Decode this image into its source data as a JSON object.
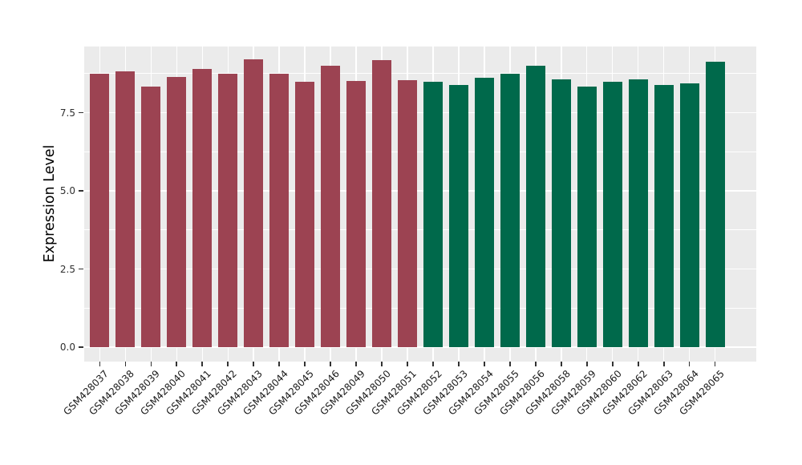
{
  "figure": {
    "background_color": "#FFFFFF"
  },
  "chart_data": {
    "type": "bar",
    "title": "",
    "xlabel": "",
    "ylabel": "Expression Level",
    "ylim": [
      0,
      9.6
    ],
    "ytick_values": [
      0,
      2.5,
      5,
      7.5
    ],
    "ytick_labels": [
      "0.0",
      "2.5",
      "5.0",
      "7.5"
    ],
    "minor_gridlines": [
      1.25,
      3.75,
      6.25,
      8.75
    ],
    "grid": "white major and minor horizontal lines plus vertical major lines on gray panel",
    "legend_position": "none",
    "panel_background": "#EBEBEB",
    "gridline_color": "#FFFFFF",
    "tick_color": "#333333",
    "axis_text_color": "#303030",
    "categories": [
      "GSM428037",
      "GSM428038",
      "GSM428039",
      "GSM428040",
      "GSM428041",
      "GSM428042",
      "GSM428043",
      "GSM428044",
      "GSM428045",
      "GSM428046",
      "GSM428049",
      "GSM428050",
      "GSM428051",
      "GSM428052",
      "GSM428053",
      "GSM428054",
      "GSM428055",
      "GSM428056",
      "GSM428058",
      "GSM428059",
      "GSM428060",
      "GSM428062",
      "GSM428063",
      "GSM428064",
      "GSM428065"
    ],
    "values": [
      8.74,
      8.82,
      8.33,
      8.65,
      8.9,
      8.75,
      9.2,
      8.74,
      8.49,
      9.0,
      8.51,
      9.18,
      8.53,
      8.49,
      8.38,
      8.62,
      8.74,
      9.01,
      8.56,
      8.34,
      8.49,
      8.56,
      8.38,
      8.44,
      9.13
    ],
    "bar_group": [
      0,
      0,
      0,
      0,
      0,
      0,
      0,
      0,
      0,
      0,
      0,
      0,
      0,
      1,
      1,
      1,
      1,
      1,
      1,
      1,
      1,
      1,
      1,
      1,
      1
    ],
    "group_names": [
      "maroon-group",
      "green-group"
    ],
    "group_colors": [
      "#9C4352",
      "#00694B"
    ]
  }
}
